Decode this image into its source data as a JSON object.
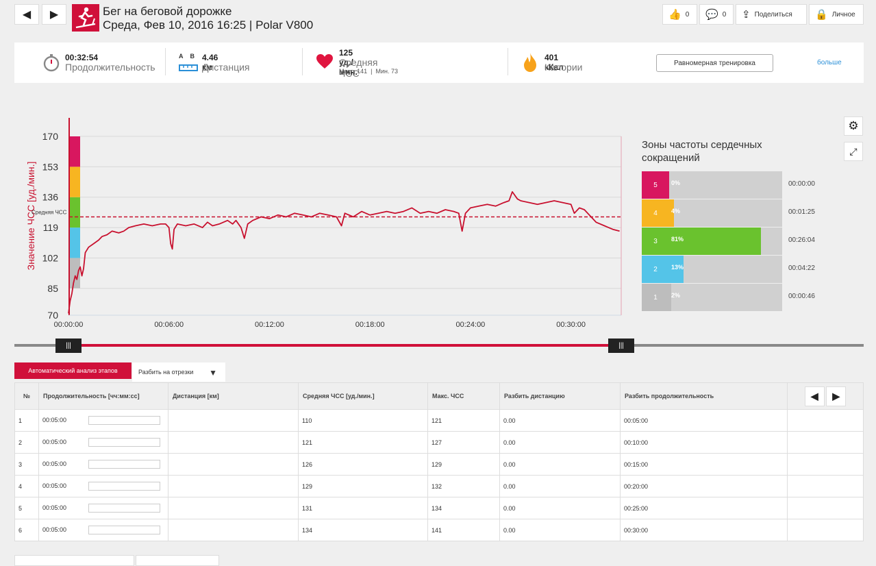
{
  "header": {
    "title": "Бег на беговой дорожке",
    "subtitle": "Среда, Фев 10, 2016 16:25 | Polar V800",
    "likes": "0",
    "comments": "0",
    "share_label": "Поделиться",
    "privacy_label": "Личное"
  },
  "summary": {
    "duration_value": "00:32:54",
    "duration_label": "Продолжительность",
    "distance_ab_a": "A",
    "distance_ab_b": "B",
    "distance_value": "4.46 км",
    "distance_label": "Дистанция",
    "hr_value": "125 уд./мин.",
    "hr_label": "Средняя ЧСС",
    "hr_sub": "Макс. 141  |  Мин. 73",
    "calories_value": "401 кКал",
    "calories_label": "Калории",
    "training_button": "Равномерная тренировка",
    "more_link": "больше"
  },
  "chart_data": {
    "type": "line",
    "ylabel": "Значение ЧСС [уд./мин.]",
    "yticks": [
      170,
      153,
      136,
      119,
      102,
      85,
      70
    ],
    "ylim": [
      70,
      172
    ],
    "xticks": [
      "00:00:00",
      "00:06:00",
      "00:12:00",
      "00:18:00",
      "00:24:00",
      "00:30:00"
    ],
    "xlim_min": [
      0,
      33
    ],
    "avg_label": "Средняя ЧСС",
    "avg_value": 125,
    "zone_colors": [
      "#bdbdbd",
      "#54c4e8",
      "#6ac22e",
      "#f7b521",
      "#d8175f"
    ],
    "series": [
      {
        "name": "HR",
        "color": "#c8102e",
        "points": [
          [
            0,
            71
          ],
          [
            0.1,
            78
          ],
          [
            0.2,
            82
          ],
          [
            0.3,
            88
          ],
          [
            0.4,
            92
          ],
          [
            0.5,
            90
          ],
          [
            0.6,
            95
          ],
          [
            0.7,
            97
          ],
          [
            0.8,
            92
          ],
          [
            0.9,
            96
          ],
          [
            1,
            105
          ],
          [
            1.2,
            108
          ],
          [
            1.5,
            110
          ],
          [
            1.8,
            112
          ],
          [
            2,
            114
          ],
          [
            2.3,
            115
          ],
          [
            2.6,
            117
          ],
          [
            3,
            116
          ],
          [
            3.3,
            117
          ],
          [
            3.6,
            119
          ],
          [
            4,
            120
          ],
          [
            4.5,
            121
          ],
          [
            5,
            120
          ],
          [
            5.5,
            121
          ],
          [
            5.8,
            121
          ],
          [
            6,
            119
          ],
          [
            6.1,
            110
          ],
          [
            6.2,
            107
          ],
          [
            6.3,
            118
          ],
          [
            6.5,
            121
          ],
          [
            7,
            120
          ],
          [
            7.5,
            121
          ],
          [
            8,
            119
          ],
          [
            8.3,
            122
          ],
          [
            8.6,
            120
          ],
          [
            9,
            121
          ],
          [
            9.5,
            123
          ],
          [
            9.8,
            121
          ],
          [
            10,
            123
          ],
          [
            10.3,
            119
          ],
          [
            10.5,
            113
          ],
          [
            10.7,
            121
          ],
          [
            11,
            123
          ],
          [
            11.5,
            125
          ],
          [
            12,
            124
          ],
          [
            12.5,
            126
          ],
          [
            13,
            125
          ],
          [
            13.5,
            127
          ],
          [
            14,
            126
          ],
          [
            14.5,
            125
          ],
          [
            15,
            127
          ],
          [
            15.5,
            126
          ],
          [
            16,
            125
          ],
          [
            16.3,
            120
          ],
          [
            16.5,
            127
          ],
          [
            17,
            125
          ],
          [
            17.5,
            128
          ],
          [
            18,
            126
          ],
          [
            18.5,
            127
          ],
          [
            19,
            128
          ],
          [
            19.5,
            127
          ],
          [
            20,
            128
          ],
          [
            20.5,
            130
          ],
          [
            21,
            127
          ],
          [
            21.5,
            128
          ],
          [
            22,
            127
          ],
          [
            22.5,
            129
          ],
          [
            23,
            128
          ],
          [
            23.3,
            127
          ],
          [
            23.5,
            117
          ],
          [
            23.7,
            127
          ],
          [
            24,
            130
          ],
          [
            24.5,
            131
          ],
          [
            25,
            132
          ],
          [
            25.5,
            131
          ],
          [
            26,
            133
          ],
          [
            26.3,
            134
          ],
          [
            26.5,
            139
          ],
          [
            26.8,
            135
          ],
          [
            27,
            134
          ],
          [
            27.5,
            133
          ],
          [
            28,
            132
          ],
          [
            28.5,
            133
          ],
          [
            29,
            134
          ],
          [
            29.5,
            133
          ],
          [
            30,
            132
          ],
          [
            30.2,
            127
          ],
          [
            30.5,
            130
          ],
          [
            30.8,
            129
          ],
          [
            31,
            127
          ],
          [
            31.5,
            122
          ],
          [
            32,
            120
          ],
          [
            32.5,
            118
          ],
          [
            32.9,
            117
          ]
        ]
      }
    ]
  },
  "zones": {
    "title": "Зоны частоты сердечных сокращений",
    "items": [
      {
        "num": "5",
        "pct": "0%",
        "frac": 0.0,
        "time": "00:00:00",
        "color": "#d8175f"
      },
      {
        "num": "4",
        "pct": "4%",
        "frac": 0.04,
        "time": "00:01:25",
        "color": "#f7b521"
      },
      {
        "num": "3",
        "pct": "81%",
        "frac": 0.81,
        "time": "00:26:04",
        "color": "#6ac22e"
      },
      {
        "num": "2",
        "pct": "13%",
        "frac": 0.13,
        "time": "00:04:22",
        "color": "#54c4e8"
      },
      {
        "num": "1",
        "pct": "2%",
        "frac": 0.02,
        "time": "00:00:46",
        "color": "#bdbdbd"
      }
    ]
  },
  "tabs": {
    "auto": "Автоматический анализ этапов",
    "split": "Разбить на отрезки"
  },
  "table": {
    "headers": [
      "№",
      "Продолжительность [чч:мм:сс]",
      "Дистанция [км]",
      "Средняя ЧСС [уд./мин.]",
      "Макс. ЧСС",
      "Разбить дистанцию",
      "Разбить продолжительность"
    ],
    "rows": [
      [
        "1",
        "00:05:00",
        "",
        "110",
        "121",
        "0.00",
        "00:05:00"
      ],
      [
        "2",
        "00:05:00",
        "",
        "121",
        "127",
        "0.00",
        "00:10:00"
      ],
      [
        "3",
        "00:05:00",
        "",
        "126",
        "129",
        "0.00",
        "00:15:00"
      ],
      [
        "4",
        "00:05:00",
        "",
        "129",
        "132",
        "0.00",
        "00:20:00"
      ],
      [
        "5",
        "00:05:00",
        "",
        "131",
        "134",
        "0.00",
        "00:25:00"
      ],
      [
        "6",
        "00:05:00",
        "",
        "134",
        "141",
        "0.00",
        "00:30:00"
      ]
    ]
  }
}
